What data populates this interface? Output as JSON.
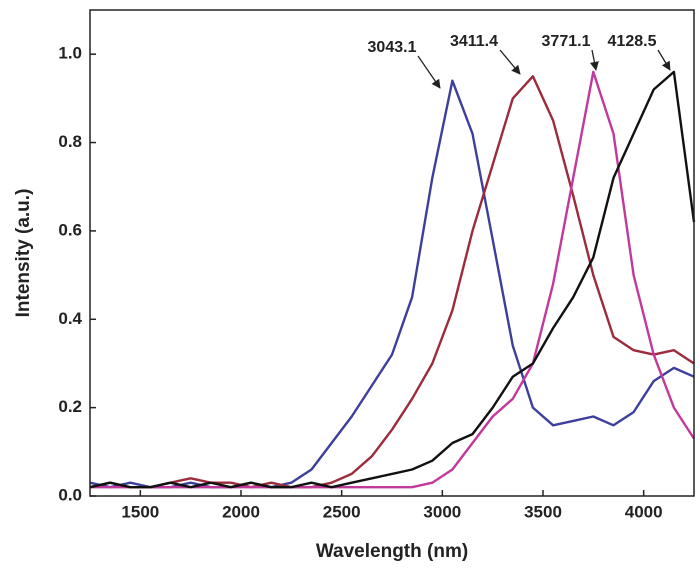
{
  "chart_data": {
    "type": "line",
    "xlabel": "Wavelength (nm)",
    "ylabel": "Intensity (a.u.)",
    "x": [
      1250,
      1350,
      1450,
      1550,
      1650,
      1750,
      1850,
      1950,
      2050,
      2150,
      2250,
      2350,
      2450,
      2550,
      2650,
      2750,
      2850,
      2950,
      3050,
      3150,
      3250,
      3350,
      3450,
      3550,
      3650,
      3750,
      3850,
      3950,
      4050,
      4150,
      4250
    ],
    "series": [
      {
        "color": "#3d3f9c",
        "values": [
          0.03,
          0.02,
          0.03,
          0.02,
          0.02,
          0.03,
          0.02,
          0.02,
          0.03,
          0.02,
          0.03,
          0.06,
          0.12,
          0.18,
          0.25,
          0.32,
          0.45,
          0.72,
          0.94,
          0.82,
          0.58,
          0.34,
          0.2,
          0.16,
          0.17,
          0.18,
          0.16,
          0.19,
          0.26,
          0.29,
          0.27
        ]
      },
      {
        "color": "#9c2b3c",
        "values": [
          0.02,
          0.03,
          0.02,
          0.02,
          0.03,
          0.04,
          0.03,
          0.03,
          0.02,
          0.03,
          0.02,
          0.02,
          0.03,
          0.05,
          0.09,
          0.15,
          0.22,
          0.3,
          0.42,
          0.6,
          0.75,
          0.9,
          0.95,
          0.85,
          0.68,
          0.5,
          0.36,
          0.33,
          0.32,
          0.33,
          0.3
        ]
      },
      {
        "color": "#c2399c",
        "values": [
          0.02,
          0.02,
          0.02,
          0.02,
          0.02,
          0.02,
          0.02,
          0.02,
          0.02,
          0.02,
          0.02,
          0.02,
          0.02,
          0.02,
          0.02,
          0.02,
          0.02,
          0.03,
          0.06,
          0.12,
          0.18,
          0.22,
          0.3,
          0.48,
          0.72,
          0.96,
          0.82,
          0.5,
          0.32,
          0.2,
          0.13
        ]
      },
      {
        "color": "#111111",
        "values": [
          0.02,
          0.03,
          0.02,
          0.02,
          0.03,
          0.02,
          0.03,
          0.02,
          0.03,
          0.02,
          0.02,
          0.03,
          0.02,
          0.03,
          0.04,
          0.05,
          0.06,
          0.08,
          0.12,
          0.14,
          0.2,
          0.27,
          0.3,
          0.38,
          0.45,
          0.54,
          0.72,
          0.82,
          0.92,
          0.96,
          0.62
        ]
      }
    ],
    "annotations": [
      {
        "text": "3043.1"
      },
      {
        "text": "3411.4"
      },
      {
        "text": "3771.1"
      },
      {
        "text": "4128.5"
      }
    ],
    "xlim": [
      1250,
      4250
    ],
    "xticks": [
      1500,
      2000,
      2500,
      3000,
      3500,
      4000
    ],
    "ylim": [
      0,
      1.1
    ],
    "yticks": [
      {
        "value": 0,
        "label": "0.0"
      },
      0.2,
      0.4,
      0.6,
      0.8,
      {
        "value": 1,
        "label": "1.0"
      }
    ]
  }
}
